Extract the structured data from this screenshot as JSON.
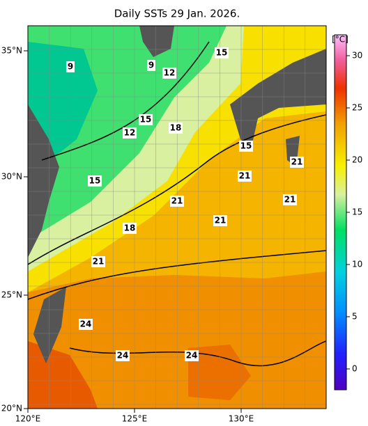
{
  "title": "Daily SSTs 29 Jan. 2026.",
  "lon_labels": [
    "120°E",
    "125°E",
    "130°E"
  ],
  "lat_labels": [
    "35°N",
    "30°N",
    "25°N",
    "20°N"
  ],
  "contour_labels": [
    "9",
    "9",
    "12",
    "15",
    "15",
    "12",
    "18",
    "15",
    "21",
    "18",
    "21",
    "21",
    "21",
    "21",
    "21",
    "24",
    "24",
    "24",
    "15"
  ],
  "colorbar": {
    "unit": "[°C]",
    "range": [
      -2,
      32
    ],
    "ticks": [
      0,
      5,
      10,
      15,
      20,
      25,
      30
    ]
  }
}
